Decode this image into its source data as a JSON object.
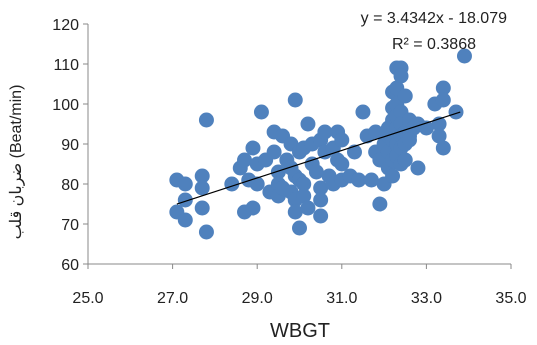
{
  "chart_data": {
    "type": "scatter",
    "xlabel": "WBGT",
    "ylabel": "ضربان قلب (Beat/min)",
    "xlim": [
      25.0,
      35.0
    ],
    "ylim": [
      60,
      120
    ],
    "x_ticks": [
      "25.0",
      "27.0",
      "29.0",
      "31.0",
      "33.0",
      "35.0"
    ],
    "y_ticks": [
      "60",
      "70",
      "80",
      "90",
      "100",
      "110",
      "120"
    ],
    "grid": false,
    "trendline": {
      "type": "linear",
      "slope": 3.4342,
      "intercept": -18.079,
      "x_range": [
        27.1,
        33.8
      ],
      "equation": "y = 3.4342x - 18.079",
      "r_squared": "R² = 0.3868"
    },
    "marker_color": "#4f81bd",
    "line_color": "#000000",
    "points": [
      [
        27.1,
        81
      ],
      [
        27.1,
        73
      ],
      [
        27.3,
        80
      ],
      [
        27.3,
        76
      ],
      [
        27.3,
        71
      ],
      [
        27.7,
        82
      ],
      [
        27.7,
        79
      ],
      [
        27.7,
        74
      ],
      [
        27.8,
        96
      ],
      [
        27.8,
        68
      ],
      [
        28.4,
        80
      ],
      [
        28.6,
        84
      ],
      [
        28.7,
        86
      ],
      [
        28.7,
        73
      ],
      [
        28.8,
        81
      ],
      [
        28.9,
        74
      ],
      [
        28.9,
        89
      ],
      [
        29.0,
        85
      ],
      [
        29.0,
        80
      ],
      [
        29.1,
        98
      ],
      [
        29.2,
        86
      ],
      [
        29.3,
        78
      ],
      [
        29.4,
        93
      ],
      [
        29.4,
        88
      ],
      [
        29.5,
        83
      ],
      [
        29.5,
        80
      ],
      [
        29.5,
        77
      ],
      [
        29.6,
        92
      ],
      [
        29.6,
        79
      ],
      [
        29.7,
        86
      ],
      [
        29.8,
        90
      ],
      [
        29.8,
        84
      ],
      [
        29.8,
        78
      ],
      [
        29.9,
        101
      ],
      [
        29.9,
        82
      ],
      [
        29.9,
        76
      ],
      [
        29.9,
        73
      ],
      [
        30.0,
        69
      ],
      [
        30.0,
        88
      ],
      [
        30.0,
        81
      ],
      [
        30.1,
        89
      ],
      [
        30.1,
        80
      ],
      [
        30.1,
        77
      ],
      [
        30.2,
        95
      ],
      [
        30.2,
        74
      ],
      [
        30.3,
        90
      ],
      [
        30.3,
        85
      ],
      [
        30.4,
        83
      ],
      [
        30.5,
        91
      ],
      [
        30.5,
        79
      ],
      [
        30.5,
        76
      ],
      [
        30.5,
        72
      ],
      [
        30.6,
        88
      ],
      [
        30.6,
        93
      ],
      [
        30.7,
        82
      ],
      [
        30.8,
        80
      ],
      [
        30.8,
        89
      ],
      [
        30.9,
        93
      ],
      [
        30.9,
        86
      ],
      [
        31.0,
        91
      ],
      [
        31.0,
        85
      ],
      [
        31.0,
        81
      ],
      [
        31.2,
        82
      ],
      [
        31.3,
        88
      ],
      [
        31.4,
        81
      ],
      [
        31.5,
        98
      ],
      [
        31.6,
        92
      ],
      [
        31.7,
        81
      ],
      [
        31.8,
        93
      ],
      [
        31.8,
        88
      ],
      [
        31.9,
        86
      ],
      [
        31.9,
        75
      ],
      [
        32.0,
        90
      ],
      [
        32.0,
        80
      ],
      [
        32.1,
        94
      ],
      [
        32.1,
        92
      ],
      [
        32.1,
        88
      ],
      [
        32.1,
        84
      ],
      [
        32.2,
        103
      ],
      [
        32.2,
        99
      ],
      [
        32.2,
        96
      ],
      [
        32.2,
        91
      ],
      [
        32.2,
        86
      ],
      [
        32.2,
        82
      ],
      [
        32.3,
        109
      ],
      [
        32.3,
        104
      ],
      [
        32.3,
        100
      ],
      [
        32.3,
        97
      ],
      [
        32.3,
        94
      ],
      [
        32.3,
        90
      ],
      [
        32.3,
        87
      ],
      [
        32.4,
        98
      ],
      [
        32.4,
        95
      ],
      [
        32.4,
        92
      ],
      [
        32.4,
        89
      ],
      [
        32.4,
        85
      ],
      [
        32.4,
        109
      ],
      [
        32.5,
        102
      ],
      [
        32.5,
        93
      ],
      [
        32.5,
        90
      ],
      [
        32.5,
        86
      ],
      [
        32.6,
        96
      ],
      [
        32.6,
        92
      ],
      [
        32.7,
        94
      ],
      [
        32.8,
        84
      ],
      [
        32.8,
        95
      ],
      [
        33.0,
        94
      ],
      [
        33.2,
        100
      ],
      [
        33.3,
        95
      ],
      [
        33.3,
        92
      ],
      [
        33.4,
        104
      ],
      [
        33.4,
        101
      ],
      [
        33.4,
        89
      ],
      [
        33.7,
        98
      ],
      [
        33.9,
        112
      ],
      [
        32.4,
        107
      ],
      [
        32.6,
        91
      ]
    ]
  }
}
